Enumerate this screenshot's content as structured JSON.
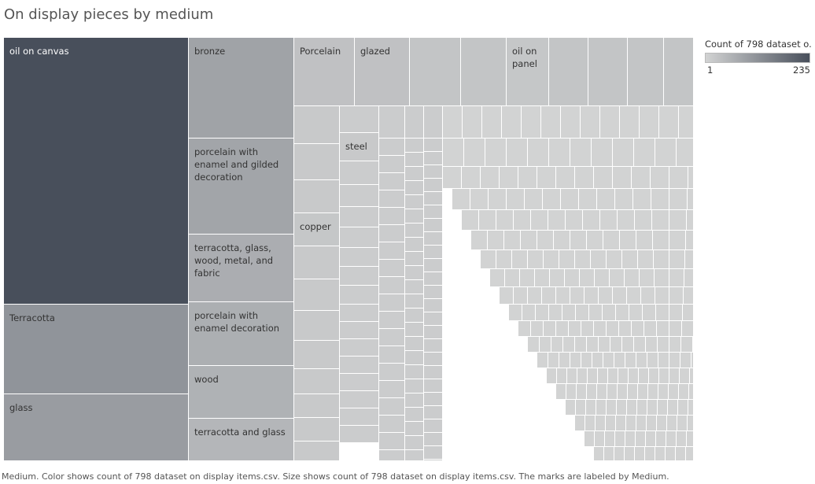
{
  "chart_data": {
    "type": "treemap",
    "title": "On display pieces by medium",
    "measure": "Count of 798 dataset on display items.csv",
    "color_legend": {
      "title": "Count of 798 dataset o..",
      "min": "1",
      "max": "235",
      "low_color": "#d2d3d3",
      "high_color": "#484f5b"
    },
    "labeled_items": [
      {
        "label": "oil on canvas",
        "value": 235
      },
      {
        "label": "Terracotta",
        "value": 62
      },
      {
        "label": "glass",
        "value": 48
      },
      {
        "label": "bronze",
        "value": 38
      },
      {
        "label": "porcelain with\nenamel and gilded\ndecoration",
        "value": 35
      },
      {
        "label": "terracotta, glass,\nwood, metal, and\nfabric",
        "value": 25
      },
      {
        "label": "porcelain with\nenamel decoration",
        "value": 23
      },
      {
        "label": "wood",
        "value": 20
      },
      {
        "label": "terracotta and glass",
        "value": 16
      },
      {
        "label": "Porcelain",
        "value": 7
      },
      {
        "label": "glazed",
        "value": 7
      },
      {
        "label": "oil on\npanel",
        "value": 4
      },
      {
        "label": "copper",
        "value": 4
      },
      {
        "label": "steel",
        "value": 3
      }
    ],
    "small_items": {
      "description_count": 250,
      "value_range": [
        1,
        4
      ]
    }
  },
  "caption": "Medium.  Color shows count of 798 dataset on display items.csv.  Size shows count of 798 dataset on display items.csv.  The marks are labeled by Medium."
}
